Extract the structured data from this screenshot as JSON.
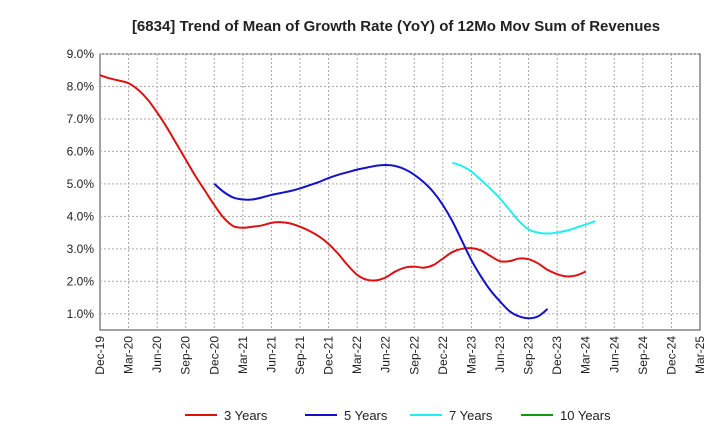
{
  "chart_data": {
    "type": "line",
    "title": "[6834]  Trend of Mean of Growth Rate (YoY) of 12Mo Mov Sum of Revenues",
    "xlabel": "",
    "ylabel": "",
    "ylim": [
      0.5,
      9.0
    ],
    "y_ticks": [
      1.0,
      2.0,
      3.0,
      4.0,
      5.0,
      6.0,
      7.0,
      8.0,
      9.0
    ],
    "y_tick_labels": [
      "1.0%",
      "2.0%",
      "3.0%",
      "4.0%",
      "5.0%",
      "6.0%",
      "7.0%",
      "8.0%",
      "9.0%"
    ],
    "x_tick_labels": [
      "Dec-19",
      "Mar-20",
      "Jun-20",
      "Sep-20",
      "Dec-20",
      "Mar-21",
      "Jun-21",
      "Sep-21",
      "Dec-21",
      "Mar-22",
      "Jun-22",
      "Sep-22",
      "Dec-22",
      "Mar-23",
      "Jun-23",
      "Sep-23",
      "Dec-23",
      "Mar-24",
      "Jun-24",
      "Sep-24",
      "Dec-24",
      "Mar-25"
    ],
    "grid": true,
    "legend_position": "bottom",
    "series": [
      {
        "name": "3 Years",
        "color": "#dd1111",
        "start_index": 0,
        "values": [
          8.35,
          8.25,
          8.18,
          8.1,
          7.9,
          7.6,
          7.2,
          6.75,
          6.25,
          5.75,
          5.25,
          4.8,
          4.35,
          3.95,
          3.7,
          3.65,
          3.68,
          3.72,
          3.8,
          3.82,
          3.78,
          3.68,
          3.55,
          3.38,
          3.15,
          2.85,
          2.5,
          2.2,
          2.05,
          2.03,
          2.12,
          2.3,
          2.42,
          2.45,
          2.42,
          2.5,
          2.7,
          2.9,
          3.0,
          3.02,
          2.95,
          2.78,
          2.62,
          2.62,
          2.7,
          2.68,
          2.55,
          2.35,
          2.22,
          2.15,
          2.18,
          2.3
        ]
      },
      {
        "name": "5 Years",
        "color": "#1111cc",
        "start_index": 12,
        "values": [
          5.0,
          4.75,
          4.58,
          4.52,
          4.52,
          4.58,
          4.66,
          4.72,
          4.78,
          4.86,
          4.96,
          5.06,
          5.18,
          5.28,
          5.36,
          5.44,
          5.5,
          5.56,
          5.58,
          5.55,
          5.45,
          5.28,
          5.05,
          4.75,
          4.35,
          3.85,
          3.25,
          2.65,
          2.15,
          1.72,
          1.38,
          1.08,
          0.92,
          0.86,
          0.92,
          1.15
        ]
      },
      {
        "name": "7 Years",
        "color": "#22eeee",
        "start_index": 37,
        "values": [
          5.65,
          5.55,
          5.38,
          5.12,
          4.85,
          4.55,
          4.2,
          3.85,
          3.6,
          3.5,
          3.47,
          3.5,
          3.56,
          3.65,
          3.75,
          3.85
        ]
      },
      {
        "name": "10 Years",
        "color": "#119911",
        "start_index": 0,
        "values": []
      }
    ]
  }
}
